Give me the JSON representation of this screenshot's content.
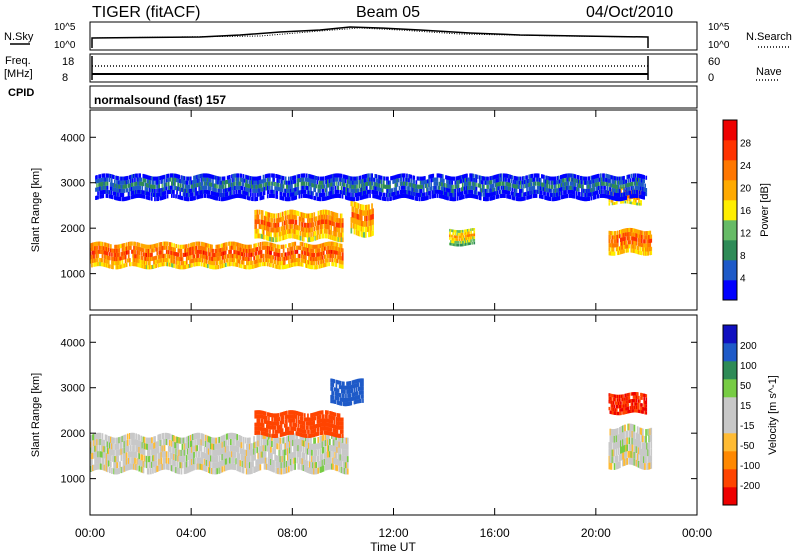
{
  "header": {
    "radar": "TIGER (fitACF)",
    "beam": "Beam 05",
    "date": "04/Oct/2010"
  },
  "summary": {
    "nsky_label": "N.Sky",
    "nsky_ticks": [
      "10^5",
      "10^0"
    ],
    "nsearch_label": "N.Search",
    "nsearch_ticks": [
      "10^5",
      "10^0"
    ],
    "freq_label": "Freq.",
    "freq_unit": "[MHz]",
    "freq_ticks": [
      "18",
      "8"
    ],
    "nave_label": "Nave",
    "nave_ticks": [
      "60",
      "0"
    ],
    "cpid_label": "CPID",
    "cpid_value": "normalsound (fast) 157"
  },
  "colors": {
    "power": [
      "#0000ff",
      "#1e5ac8",
      "#2e8b57",
      "#66bb66",
      "#ffee00",
      "#ffaa00",
      "#ff7700",
      "#ff3300",
      "#ee0000"
    ],
    "velocity": [
      "#ee0000",
      "#ff4400",
      "#ff8800",
      "#ffbb33",
      "#c8c8c8",
      "#c8c8c8",
      "#77cc44",
      "#2e8b57",
      "#1e5ac8",
      "#1010c0"
    ],
    "ground_scatter": "#bbbbbb"
  },
  "chart_data": [
    {
      "type": "heatmap",
      "name": "Power",
      "ylabel": "Slant Range [km]",
      "yticks": [
        1000,
        2000,
        3000,
        4000
      ],
      "ylim": [
        200,
        4600
      ],
      "xlim": [
        "00:00",
        "24:00"
      ],
      "colorbar": {
        "label": "Power [dB]",
        "ticks": [
          4,
          8,
          12,
          16,
          20,
          24,
          28
        ],
        "range": [
          0,
          32
        ]
      },
      "echo_regions": [
        {
          "t0": 0.0,
          "t1": 10.0,
          "r0": 1100,
          "r1": 1700,
          "level": 26
        },
        {
          "t0": 6.5,
          "t1": 10.0,
          "r0": 1700,
          "r1": 2400,
          "level": 25
        },
        {
          "t0": 10.3,
          "t1": 11.2,
          "r0": 1800,
          "r1": 2600,
          "level": 24
        },
        {
          "t0": 14.2,
          "t1": 15.2,
          "r0": 1600,
          "r1": 2000,
          "level": 20
        },
        {
          "t0": 20.5,
          "t1": 22.2,
          "r0": 1400,
          "r1": 2000,
          "level": 26
        },
        {
          "t0": 20.5,
          "t1": 21.8,
          "r0": 2500,
          "r1": 2900,
          "level": 24
        },
        {
          "t0": 0.2,
          "t1": 22.0,
          "r0": 2600,
          "r1": 3200,
          "level": 8
        }
      ]
    },
    {
      "type": "heatmap",
      "name": "Velocity",
      "ylabel": "Slant Range [km]",
      "yticks": [
        1000,
        2000,
        3000,
        4000
      ],
      "ylim": [
        200,
        4600
      ],
      "xlabel": "Time UT",
      "xticks": [
        "00:00",
        "04:00",
        "08:00",
        "12:00",
        "16:00",
        "20:00",
        "00:00"
      ],
      "xlim": [
        "00:00",
        "24:00"
      ],
      "colorbar": {
        "label": "Velocity [m s^-1]",
        "ticks": [
          -200,
          -100,
          -50,
          -15,
          15,
          50,
          100,
          200
        ]
      },
      "echo_regions": [
        {
          "t0": 0.0,
          "t1": 10.2,
          "r0": 1100,
          "r1": 2000,
          "level": 0
        },
        {
          "t0": 6.5,
          "t1": 10.0,
          "r0": 1900,
          "r1": 2500,
          "level": -120
        },
        {
          "t0": 9.5,
          "t1": 10.8,
          "r0": 2600,
          "r1": 3200,
          "level": 150
        },
        {
          "t0": 20.5,
          "t1": 22.0,
          "r0": 2400,
          "r1": 2900,
          "level": -200
        },
        {
          "t0": 20.5,
          "t1": 22.2,
          "r0": 1200,
          "r1": 2200,
          "level": 0
        }
      ]
    }
  ]
}
